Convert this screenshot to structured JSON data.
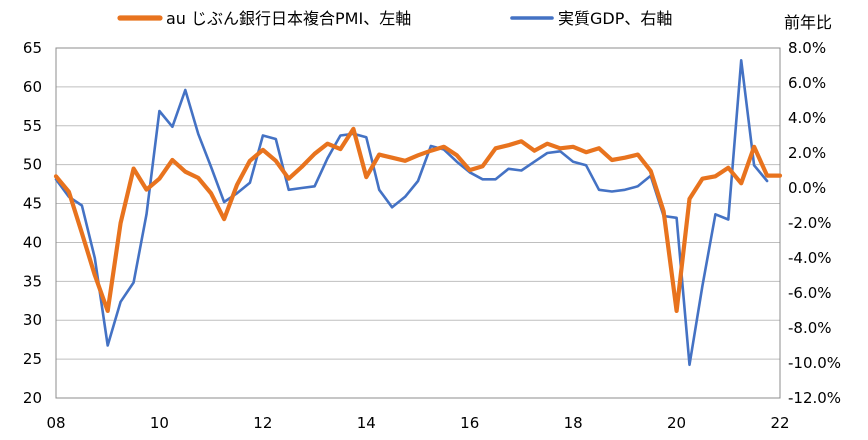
{
  "chart_data": {
    "type": "line",
    "title": "",
    "xlabel": "",
    "ylabel_left": "",
    "ylabel_right": "前年比",
    "xlim": [
      2008,
      2022
    ],
    "ylim_left": [
      20,
      65
    ],
    "ylim_right": [
      -12,
      8
    ],
    "x_ticks": [
      "08",
      "10",
      "12",
      "14",
      "16",
      "18",
      "20",
      "22"
    ],
    "y_left_ticks": [
      "20",
      "25",
      "30",
      "35",
      "40",
      "45",
      "50",
      "55",
      "60",
      "65"
    ],
    "y_right_ticks": [
      "-12.0%",
      "-10.0%",
      "-8.0%",
      "-6.0%",
      "-4.0%",
      "-2.0%",
      "0.0%",
      "2.0%",
      "4.0%",
      "6.0%",
      "8.0%"
    ],
    "legend_position": "top",
    "grid": "horizontal",
    "series": [
      {
        "name": "au じぶん銀行日本複合PMI、左軸",
        "axis": "left",
        "color": "#E8731E",
        "x": [
          2008.0,
          2008.25,
          2008.5,
          2008.75,
          2009.0,
          2009.25,
          2009.5,
          2009.75,
          2010.0,
          2010.25,
          2010.5,
          2010.75,
          2011.0,
          2011.25,
          2011.5,
          2011.75,
          2012.0,
          2012.25,
          2012.5,
          2012.75,
          2013.0,
          2013.25,
          2013.5,
          2013.75,
          2014.0,
          2014.25,
          2014.5,
          2014.75,
          2015.0,
          2015.25,
          2015.5,
          2015.75,
          2016.0,
          2016.25,
          2016.5,
          2016.75,
          2017.0,
          2017.25,
          2017.5,
          2017.75,
          2018.0,
          2018.25,
          2018.5,
          2018.75,
          2019.0,
          2019.25,
          2019.5,
          2019.75,
          2020.0,
          2020.25,
          2020.5,
          2020.75,
          2021.0,
          2021.25,
          2021.5,
          2021.75,
          2022.0
        ],
        "y": [
          48.5,
          46.5,
          41.2,
          35.8,
          31.2,
          42.5,
          49.5,
          46.8,
          48.2,
          50.6,
          49.1,
          48.3,
          46.3,
          43.0,
          47.4,
          50.5,
          51.9,
          50.5,
          48.2,
          49.7,
          51.4,
          52.7,
          52.0,
          54.6,
          48.4,
          51.3,
          50.9,
          50.5,
          51.2,
          51.8,
          52.3,
          51.2,
          49.3,
          49.8,
          52.1,
          52.5,
          53.0,
          51.8,
          52.7,
          52.1,
          52.3,
          51.6,
          52.1,
          50.6,
          50.9,
          51.3,
          49.2,
          44.0,
          31.2,
          45.6,
          48.2,
          48.5,
          49.6,
          47.6,
          52.3,
          48.6,
          48.6
        ]
      },
      {
        "name": "実質GDP、右軸",
        "axis": "right",
        "color": "#4472C4",
        "x": [
          2008.0,
          2008.25,
          2008.5,
          2008.75,
          2009.0,
          2009.25,
          2009.5,
          2009.75,
          2010.0,
          2010.25,
          2010.5,
          2010.75,
          2011.0,
          2011.25,
          2011.5,
          2011.75,
          2012.0,
          2012.25,
          2012.5,
          2012.75,
          2013.0,
          2013.25,
          2013.5,
          2013.75,
          2014.0,
          2014.25,
          2014.5,
          2014.75,
          2015.0,
          2015.25,
          2015.5,
          2015.75,
          2016.0,
          2016.25,
          2016.5,
          2016.75,
          2017.0,
          2017.25,
          2017.5,
          2017.75,
          2018.0,
          2018.25,
          2018.5,
          2018.75,
          2019.0,
          2019.25,
          2019.5,
          2019.75,
          2020.0,
          2020.25,
          2020.5,
          2020.75,
          2021.0,
          2021.25,
          2021.5,
          2021.75
        ],
        "y": [
          0.5,
          -0.5,
          -1.0,
          -4.0,
          -9.0,
          -6.5,
          -5.4,
          -1.5,
          4.4,
          3.5,
          5.6,
          3.1,
          1.2,
          -0.8,
          -0.3,
          0.3,
          3.0,
          2.8,
          -0.1,
          0.0,
          0.1,
          1.7,
          3.0,
          3.1,
          2.9,
          -0.1,
          -1.1,
          -0.5,
          0.4,
          2.4,
          2.2,
          1.5,
          0.9,
          0.5,
          0.5,
          1.1,
          1.0,
          1.5,
          2.0,
          2.1,
          1.5,
          1.3,
          -0.1,
          -0.2,
          -0.1,
          0.1,
          0.7,
          -1.6,
          -1.7,
          -10.1,
          -5.6,
          -1.5,
          -1.8,
          7.3,
          1.3,
          0.4
        ]
      }
    ]
  }
}
